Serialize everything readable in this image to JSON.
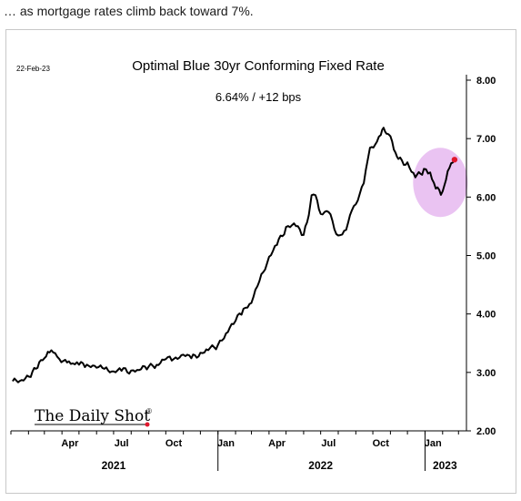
{
  "caption": "… as mortgage rates climb back toward 7%.",
  "chart_data": {
    "type": "line",
    "title": "Optimal Blue 30yr Conforming Fixed Rate",
    "subtitle": "6.64%  /  +12 bps",
    "date_stamp": "22-Feb-23",
    "watermark": "The Daily Shot",
    "watermark_mark": "®",
    "ylim": [
      2.0,
      8.0
    ],
    "yticks": [
      "8.00",
      "7.00",
      "6.00",
      "5.00",
      "4.00",
      "3.00",
      "2.00"
    ],
    "x_tick_labels": [
      "Apr",
      "Jul",
      "Oct",
      "Jan",
      "Apr",
      "Jul",
      "Oct",
      "Jan"
    ],
    "years": [
      "2021",
      "2022",
      "2023"
    ],
    "highlight_color": "#e6b8f0",
    "line_color": "#000000",
    "end_marker_color": "#e0182d",
    "series": [
      {
        "x": [
          "2021-01-04",
          "2021-01-20",
          "2021-02-05",
          "2021-02-20",
          "2021-03-01",
          "2021-03-10",
          "2021-03-20",
          "2021-03-31",
          "2021-04-10",
          "2021-04-20",
          "2021-05-01",
          "2021-05-15",
          "2021-06-01",
          "2021-06-15",
          "2021-07-01",
          "2021-07-15",
          "2021-08-01",
          "2021-08-15",
          "2021-09-01",
          "2021-09-15",
          "2021-10-01",
          "2021-10-15",
          "2021-11-01",
          "2021-11-15",
          "2021-12-01",
          "2021-12-15",
          "2022-01-01",
          "2022-01-15",
          "2022-02-01",
          "2022-02-15",
          "2022-03-01",
          "2022-03-15",
          "2022-04-01",
          "2022-04-15",
          "2022-05-01",
          "2022-05-15",
          "2022-06-01",
          "2022-06-10",
          "2022-06-15",
          "2022-06-22",
          "2022-07-01",
          "2022-07-15",
          "2022-08-01",
          "2022-08-15",
          "2022-08-25",
          "2022-09-01",
          "2022-09-15",
          "2022-09-26",
          "2022-10-05",
          "2022-10-15",
          "2022-10-20",
          "2022-10-25",
          "2022-11-01",
          "2022-11-10",
          "2022-11-15",
          "2022-12-01",
          "2022-12-15",
          "2022-12-30",
          "2023-01-10",
          "2023-01-20",
          "2023-02-01",
          "2023-02-10",
          "2023-02-22"
        ],
        "y": [
          2.85,
          2.85,
          2.95,
          3.15,
          3.25,
          3.35,
          3.3,
          3.2,
          3.15,
          3.15,
          3.15,
          3.1,
          3.1,
          3.05,
          3.0,
          3.05,
          3.0,
          3.05,
          3.1,
          3.1,
          3.25,
          3.2,
          3.3,
          3.25,
          3.3,
          3.4,
          3.45,
          3.65,
          3.9,
          4.05,
          4.2,
          4.55,
          4.95,
          5.2,
          5.45,
          5.55,
          5.35,
          5.65,
          6.05,
          6.0,
          5.7,
          5.75,
          5.3,
          5.45,
          5.75,
          5.85,
          6.25,
          6.8,
          6.9,
          7.05,
          7.15,
          7.1,
          7.0,
          6.75,
          6.65,
          6.55,
          6.35,
          6.45,
          6.4,
          6.15,
          6.05,
          6.45,
          6.64
        ]
      }
    ]
  }
}
